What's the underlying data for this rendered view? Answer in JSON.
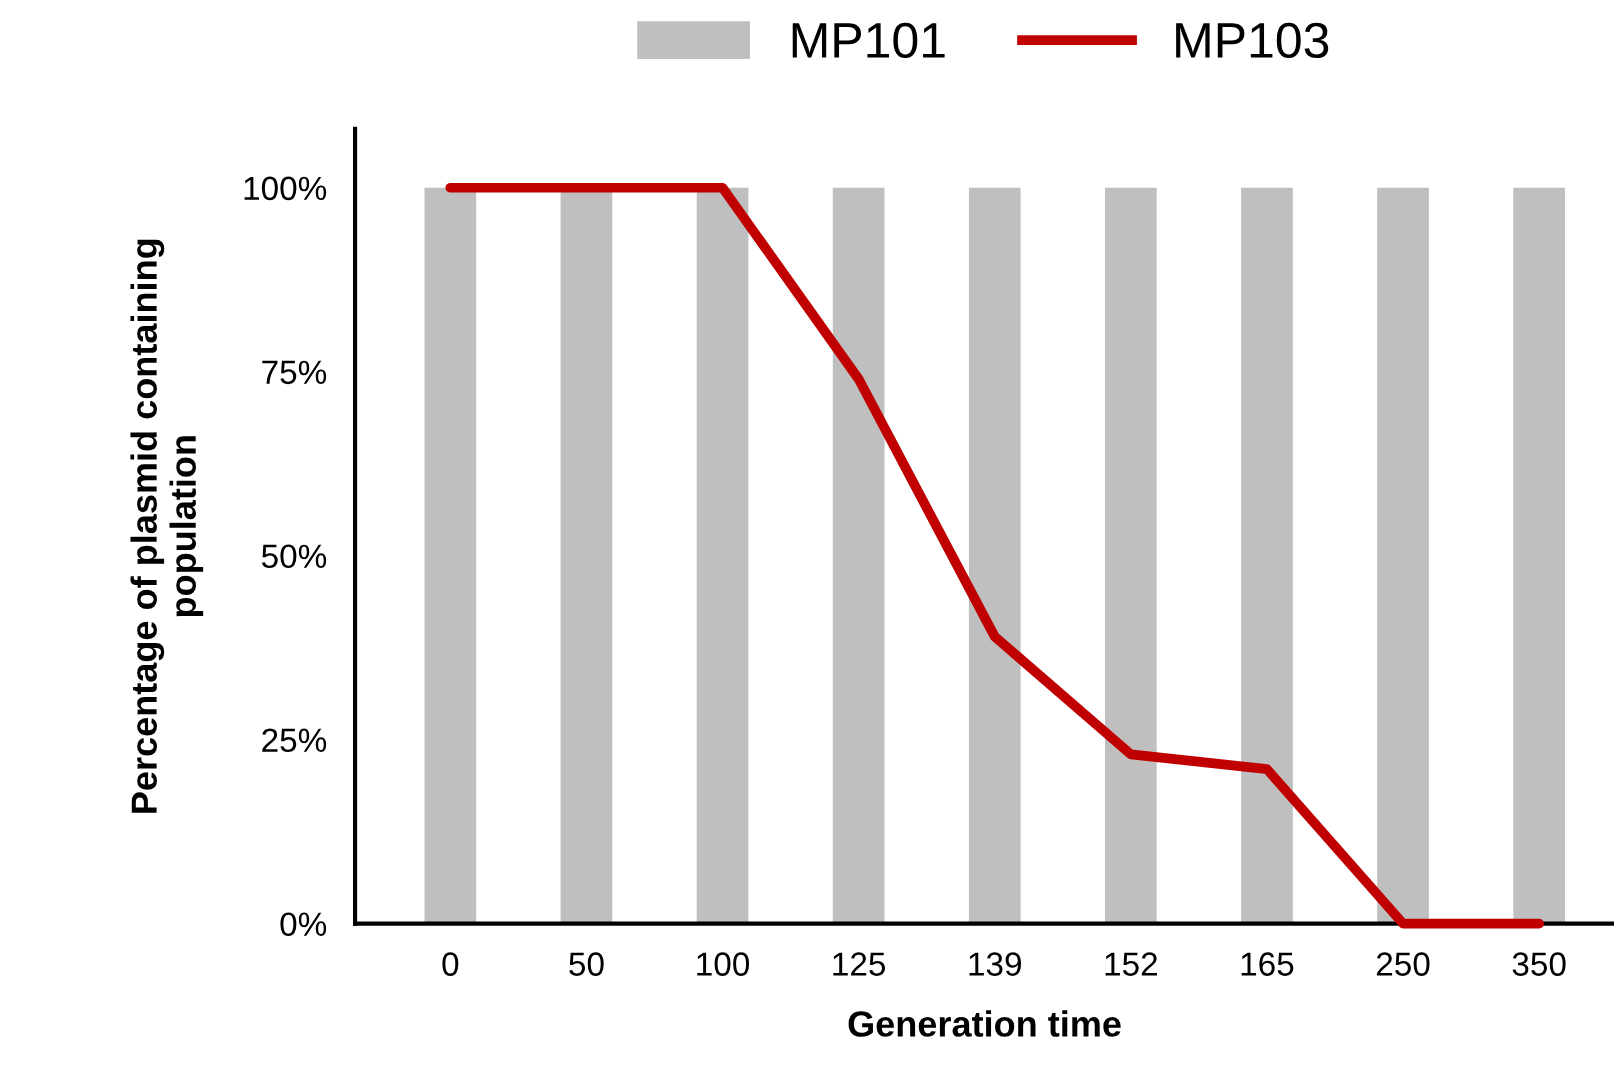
{
  "chart_data": {
    "type": "bar",
    "xlabel": "Generation time",
    "ylabel": "Percentage of plasmid containing\npopulation",
    "categories": [
      "0",
      "50",
      "100",
      "125",
      "139",
      "152",
      "165",
      "250",
      "350"
    ],
    "series": [
      {
        "name": "MP101",
        "color": "#bfbfbf",
        "values": [
          100,
          100,
          100,
          100,
          100,
          100,
          100,
          100,
          100
        ]
      },
      {
        "name": "MP103",
        "type": "line",
        "color": "#c00000",
        "values": [
          100,
          100,
          100,
          74,
          39,
          23,
          21,
          0,
          0
        ]
      }
    ],
    "ylim": [
      0,
      108
    ],
    "yticks": [
      {
        "value": 0,
        "label": "0%"
      },
      {
        "value": 25,
        "label": "25%"
      },
      {
        "value": 50,
        "label": "50%"
      },
      {
        "value": 75,
        "label": "75%"
      },
      {
        "value": 100,
        "label": "100%"
      }
    ],
    "grid": false,
    "legend": "top",
    "marker": "none",
    "line_style": "solid"
  }
}
